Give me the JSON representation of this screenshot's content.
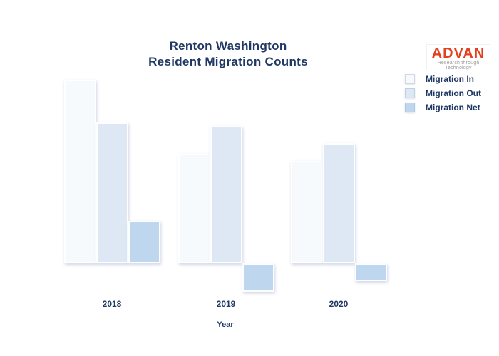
{
  "header": {
    "title_line1": "Renton Washington",
    "title_line2": "Resident Migration Counts",
    "title_color": "#1f3864"
  },
  "logo": {
    "brand": "ADVAN",
    "tagline": "Research through Technology",
    "brand_color": "#e2401f"
  },
  "chart_data": {
    "type": "bar",
    "title": "Renton Washington Resident Migration Counts",
    "categories": [
      "2018",
      "2019",
      "2020"
    ],
    "series": [
      {
        "name": "Migration In",
        "color": "#f7fafd",
        "values": [
          2600,
          1550,
          1450
        ]
      },
      {
        "name": "Migration Out",
        "color": "#dde8f4",
        "values": [
          2000,
          1950,
          1700
        ]
      },
      {
        "name": "Migration Net",
        "color": "#bfd6ef",
        "values": [
          600,
          -400,
          -250
        ]
      }
    ],
    "xlabel": "Year",
    "ylabel": "",
    "ylim": [
      -500,
      2700
    ],
    "grid": false,
    "legend_position": "top-right"
  }
}
